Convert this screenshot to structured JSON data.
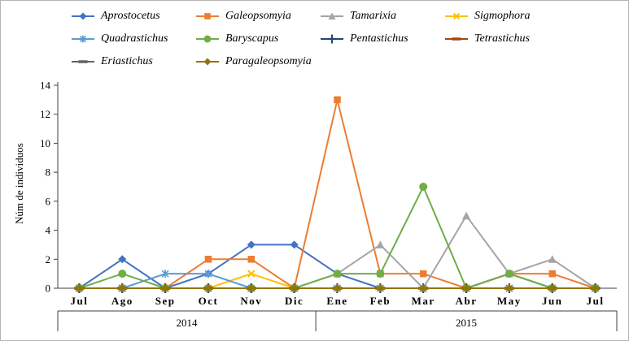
{
  "chart_data": {
    "type": "line",
    "title": "",
    "xlabel": "",
    "ylabel": "Núm de individuos",
    "ylim": [
      0,
      14
    ],
    "y_ticks": [
      0,
      2,
      4,
      6,
      8,
      10,
      12,
      14
    ],
    "grid": false,
    "legend_position": "top",
    "axis_color": "#404040",
    "categories": [
      "Jul",
      "Ago",
      "Sep",
      "Oct",
      "Nov",
      "Dic",
      "Ene",
      "Feb",
      "Mar",
      "Abr",
      "May",
      "Jun",
      "Jul"
    ],
    "year_groups": [
      {
        "label": "2014",
        "start": 0,
        "end": 5
      },
      {
        "label": "2015",
        "start": 6,
        "end": 12
      }
    ],
    "series": [
      {
        "name": "Aprostocetus",
        "color": "#4472C4",
        "marker": "diamond",
        "values": [
          0,
          2,
          0,
          1,
          3,
          3,
          1,
          0,
          0,
          0,
          1,
          0,
          0
        ]
      },
      {
        "name": "Galeopsomyia",
        "color": "#ED7D31",
        "marker": "square",
        "values": [
          0,
          0,
          0,
          2,
          2,
          0,
          13,
          1,
          1,
          0,
          1,
          1,
          0
        ]
      },
      {
        "name": "Tamarixia",
        "color": "#A5A5A5",
        "marker": "triangle",
        "values": [
          0,
          0,
          0,
          0,
          0,
          0,
          1,
          3,
          0,
          5,
          1,
          2,
          0
        ]
      },
      {
        "name": "Sigmophora",
        "color": "#FFC000",
        "marker": "x",
        "values": [
          0,
          0,
          0,
          0,
          1,
          0,
          0,
          0,
          0,
          0,
          0,
          0,
          0
        ]
      },
      {
        "name": "Quadrastichus",
        "color": "#5B9BD5",
        "marker": "asterisk",
        "values": [
          0,
          0,
          1,
          1,
          0,
          0,
          0,
          0,
          0,
          0,
          0,
          0,
          0
        ]
      },
      {
        "name": "Baryscapus",
        "color": "#70AD47",
        "marker": "circle",
        "values": [
          0,
          1,
          0,
          0,
          0,
          0,
          1,
          1,
          7,
          0,
          1,
          0,
          0
        ]
      },
      {
        "name": "Pentastichus",
        "color": "#264478",
        "marker": "plus",
        "values": [
          0,
          0,
          0,
          0,
          0,
          0,
          0,
          0,
          0,
          0,
          0,
          0,
          0
        ]
      },
      {
        "name": "Tetrastichus",
        "color": "#9E480E",
        "marker": "dash",
        "values": [
          0,
          0,
          0,
          0,
          0,
          0,
          0,
          0,
          0,
          0,
          0,
          0,
          0
        ]
      },
      {
        "name": "Eriastichus",
        "color": "#636363",
        "marker": "dash",
        "values": [
          0,
          0,
          0,
          0,
          0,
          0,
          0,
          0,
          0,
          0,
          0,
          0,
          0
        ]
      },
      {
        "name": "Paragaleopsomyia",
        "color": "#997300",
        "marker": "diamond",
        "values": [
          0,
          0,
          0,
          0,
          0,
          0,
          0,
          0,
          0,
          0,
          0,
          0,
          0
        ]
      }
    ]
  }
}
